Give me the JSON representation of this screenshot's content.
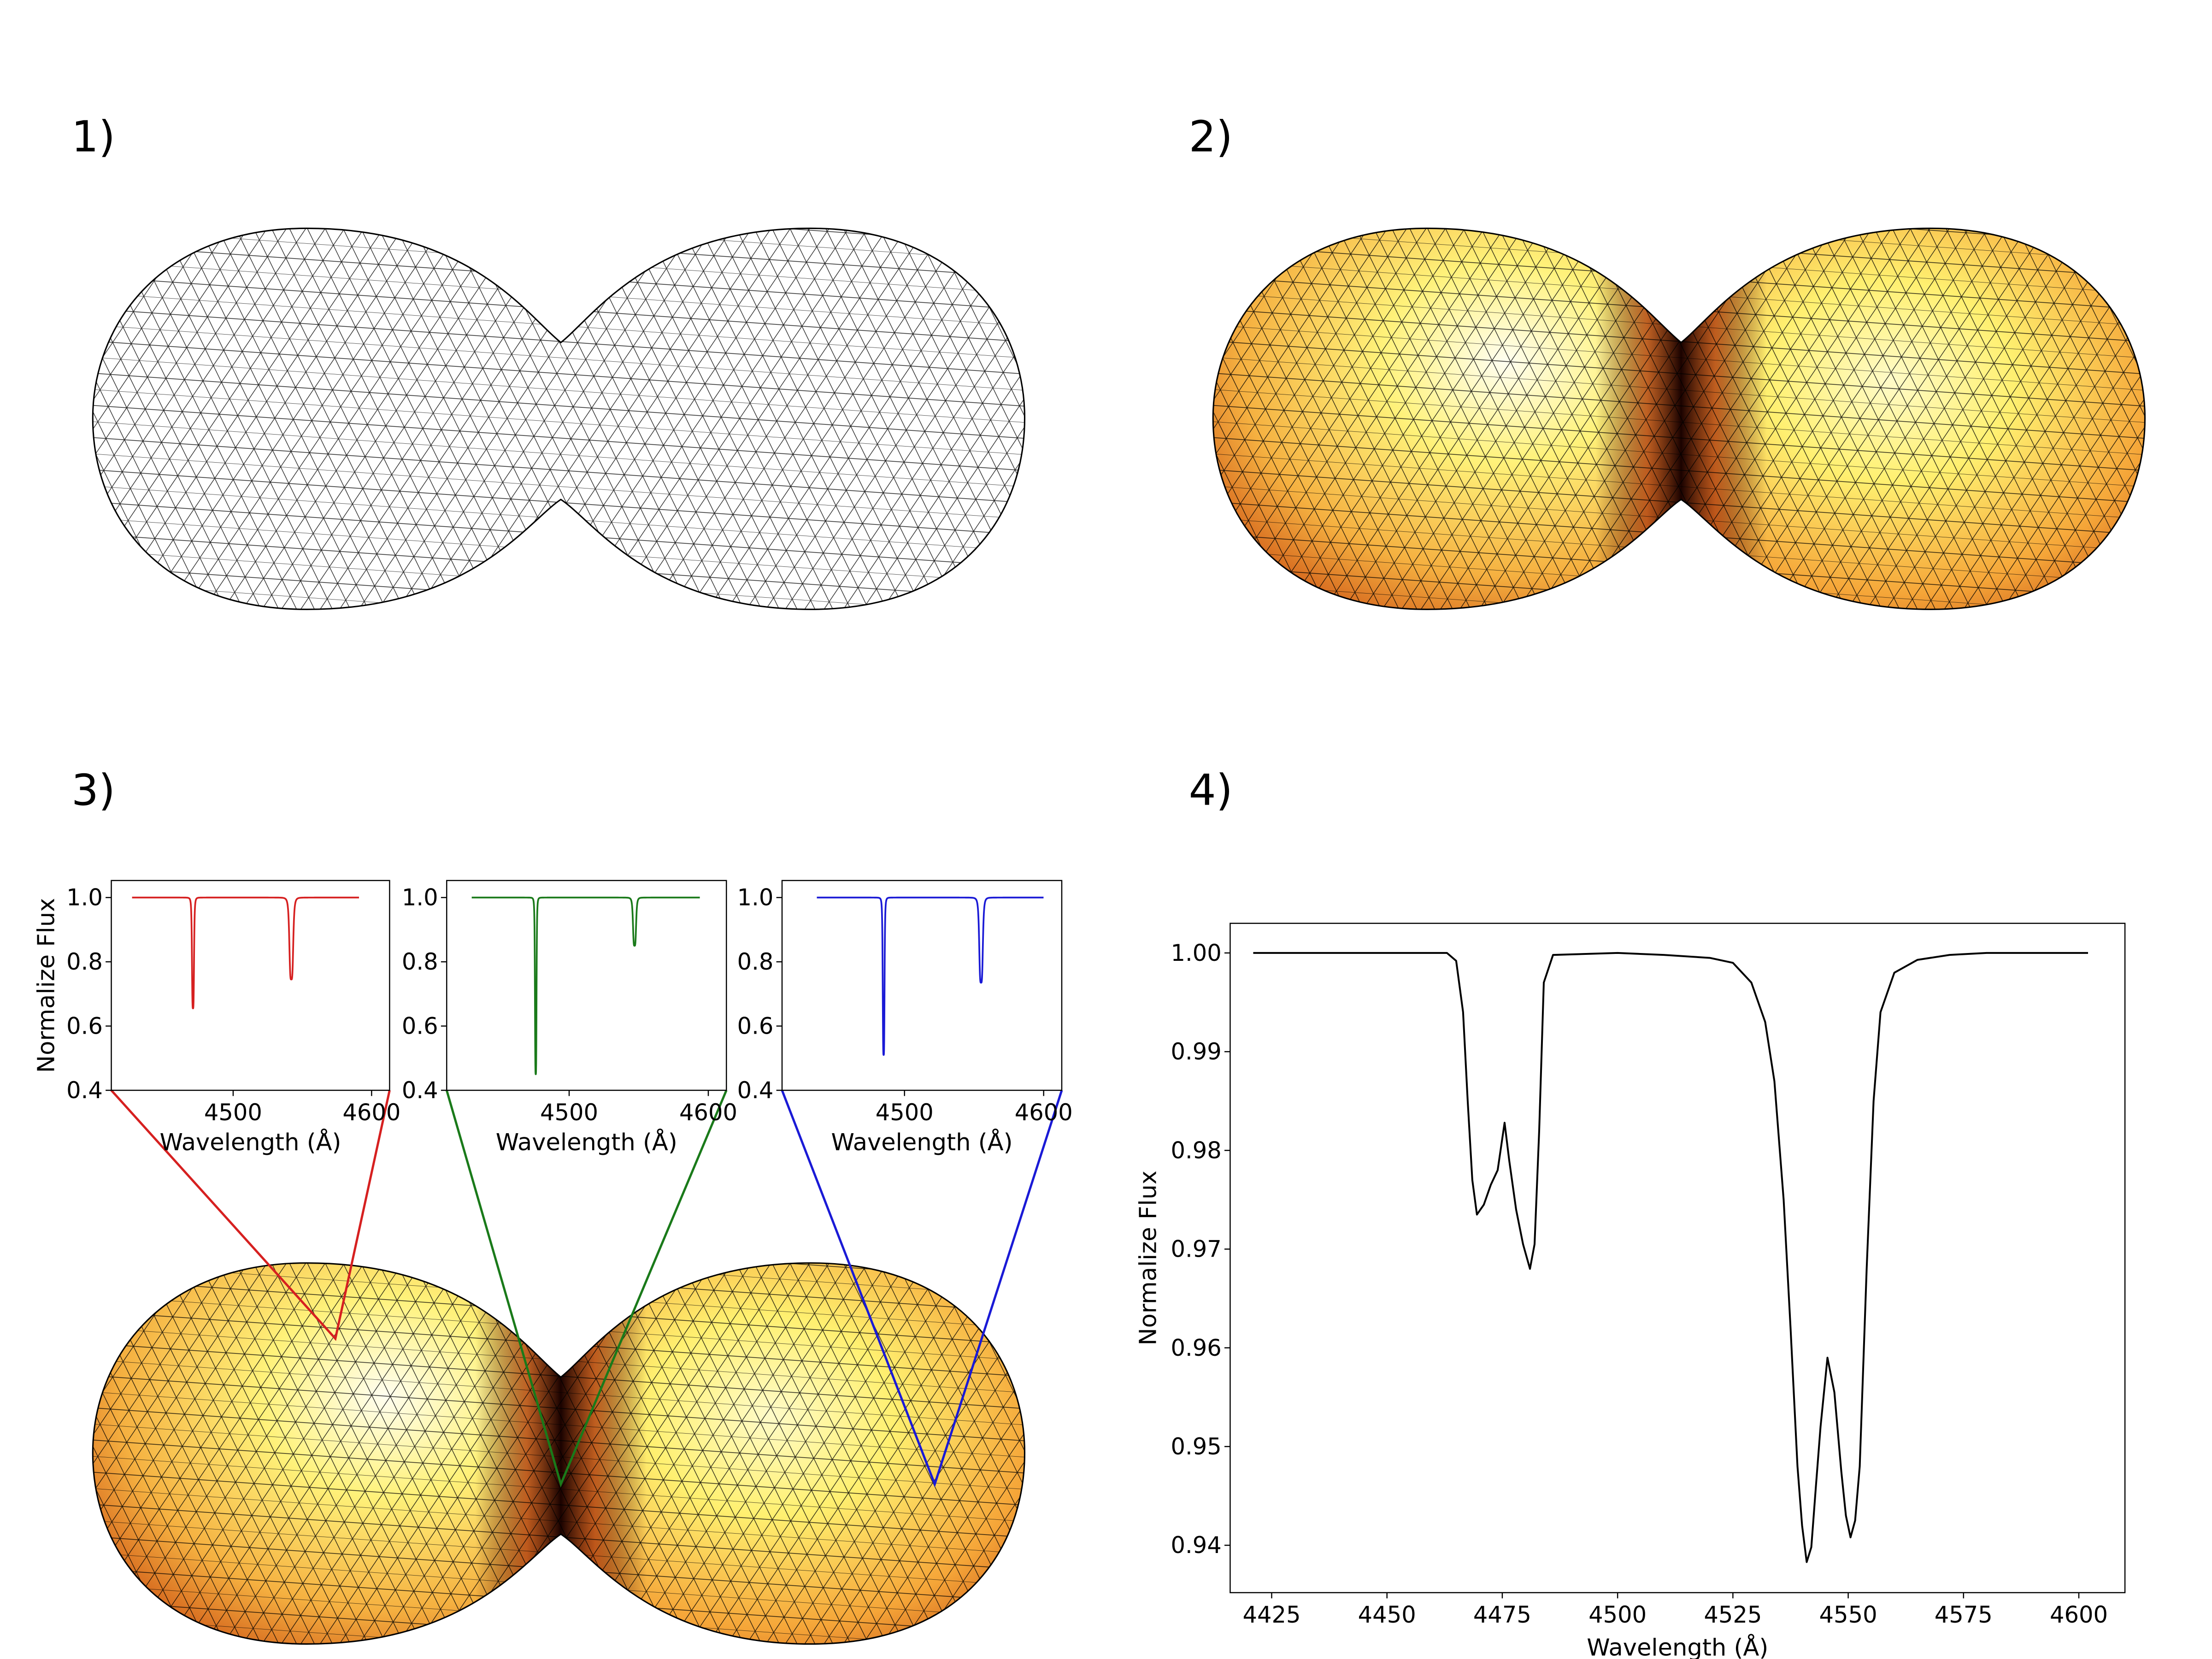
{
  "panels": {
    "p1": "1)",
    "p2": "2)",
    "p3": "3)",
    "p4": "4)"
  },
  "colors": {
    "mesh": "#000000",
    "surface_hot": "#fff27a",
    "surface_cool": "#e07a1a",
    "neck": "#2a0300",
    "inset_red": "#d62020",
    "inset_green": "#1a7a1a",
    "inset_blue": "#1a1ad6"
  },
  "icons": {
    "p1": "triangulated-mesh-contact-binary",
    "p2": "temperature-shaded-mesh-contact-binary",
    "p3": "shaded-mesh-with-inset-pointers"
  },
  "chart_data": [
    {
      "id": "inset_red",
      "type": "line",
      "color": "#d62020",
      "xlabel": "Wavelength (Å)",
      "ylabel": "Normalize Flux",
      "xlim": [
        4412,
        4613
      ],
      "ylim": [
        0.4,
        1.053
      ],
      "xticks": [
        "4500",
        "4600"
      ],
      "xtick_values": [
        4500,
        4600
      ],
      "yticks": [
        "0.4",
        "0.6",
        "0.8",
        "1.0"
      ],
      "ytick_values": [
        0.4,
        0.6,
        0.8,
        1.0
      ],
      "x_range": [
        4427,
        4591
      ],
      "lines": [
        {
          "center": 4471,
          "depth": 0.345,
          "width": 0.8
        },
        {
          "center": 4542,
          "depth": 0.255,
          "width": 1.5
        }
      ]
    },
    {
      "id": "inset_green",
      "type": "line",
      "color": "#1a7a1a",
      "xlabel": "Wavelength (Å)",
      "xlim": [
        4412,
        4613
      ],
      "ylim": [
        0.4,
        1.053
      ],
      "xticks": [
        "4500",
        "4600"
      ],
      "xtick_values": [
        4500,
        4600
      ],
      "yticks": [
        "0.4",
        "0.6",
        "0.8",
        "1.0"
      ],
      "ytick_values": [
        0.4,
        0.6,
        0.8,
        1.0
      ],
      "x_range": [
        4430,
        4594
      ],
      "lines": [
        {
          "center": 4476,
          "depth": 0.55,
          "width": 0.6
        },
        {
          "center": 4547,
          "depth": 0.15,
          "width": 1.2
        }
      ]
    },
    {
      "id": "inset_blue",
      "type": "line",
      "color": "#1a1ad6",
      "xlabel": "Wavelength (Å)",
      "xlim": [
        4412,
        4613
      ],
      "ylim": [
        0.4,
        1.053
      ],
      "xticks": [
        "4500",
        "4600"
      ],
      "xtick_values": [
        4500,
        4600
      ],
      "yticks": [
        "0.4",
        "0.6",
        "0.8",
        "1.0"
      ],
      "ytick_values": [
        0.4,
        0.6,
        0.8,
        1.0
      ],
      "x_range": [
        4437,
        4600
      ],
      "lines": [
        {
          "center": 4485,
          "depth": 0.49,
          "width": 0.7
        },
        {
          "center": 4555,
          "depth": 0.265,
          "width": 1.4
        }
      ]
    },
    {
      "id": "main",
      "type": "line",
      "color": "#000000",
      "xlabel": "Wavelength (Å)",
      "ylabel": "Normalize Flux",
      "xlim": [
        4416,
        4610
      ],
      "ylim": [
        0.9352,
        1.003
      ],
      "xticks": [
        "4425",
        "4450",
        "4475",
        "4500",
        "4525",
        "4550",
        "4575",
        "4600"
      ],
      "xtick_values": [
        4425,
        4450,
        4475,
        4500,
        4525,
        4550,
        4575,
        4600
      ],
      "yticks": [
        "0.94",
        "0.95",
        "0.96",
        "0.97",
        "0.98",
        "0.99",
        "1.00"
      ],
      "ytick_values": [
        0.94,
        0.95,
        0.96,
        0.97,
        0.98,
        0.99,
        1.0
      ],
      "x": [
        4421,
        4463,
        4465,
        4466.5,
        4467.5,
        4468.5,
        4469.5,
        4471,
        4472.5,
        4474,
        4475.5,
        4476.5,
        4478,
        4479.5,
        4481,
        4482,
        4483,
        4484,
        4486,
        4500,
        4510,
        4520,
        4525,
        4529,
        4532,
        4534,
        4536,
        4537.5,
        4539,
        4540,
        4541,
        4542,
        4543,
        4544,
        4545.5,
        4547,
        4548.5,
        4549.5,
        4550.5,
        4551.5,
        4552.5,
        4554,
        4555.5,
        4557,
        4560,
        4565,
        4572,
        4580,
        4602
      ],
      "y": [
        1.0,
        1.0,
        0.9992,
        0.994,
        0.985,
        0.977,
        0.9735,
        0.9745,
        0.9765,
        0.978,
        0.9828,
        0.979,
        0.974,
        0.9705,
        0.968,
        0.9705,
        0.982,
        0.997,
        0.9998,
        1.0,
        0.9998,
        0.9995,
        0.999,
        0.997,
        0.993,
        0.987,
        0.975,
        0.962,
        0.948,
        0.942,
        0.9383,
        0.9398,
        0.946,
        0.952,
        0.959,
        0.9555,
        0.9475,
        0.943,
        0.9408,
        0.9425,
        0.948,
        0.968,
        0.985,
        0.994,
        0.998,
        0.9993,
        0.9998,
        1.0,
        1.0
      ]
    }
  ]
}
